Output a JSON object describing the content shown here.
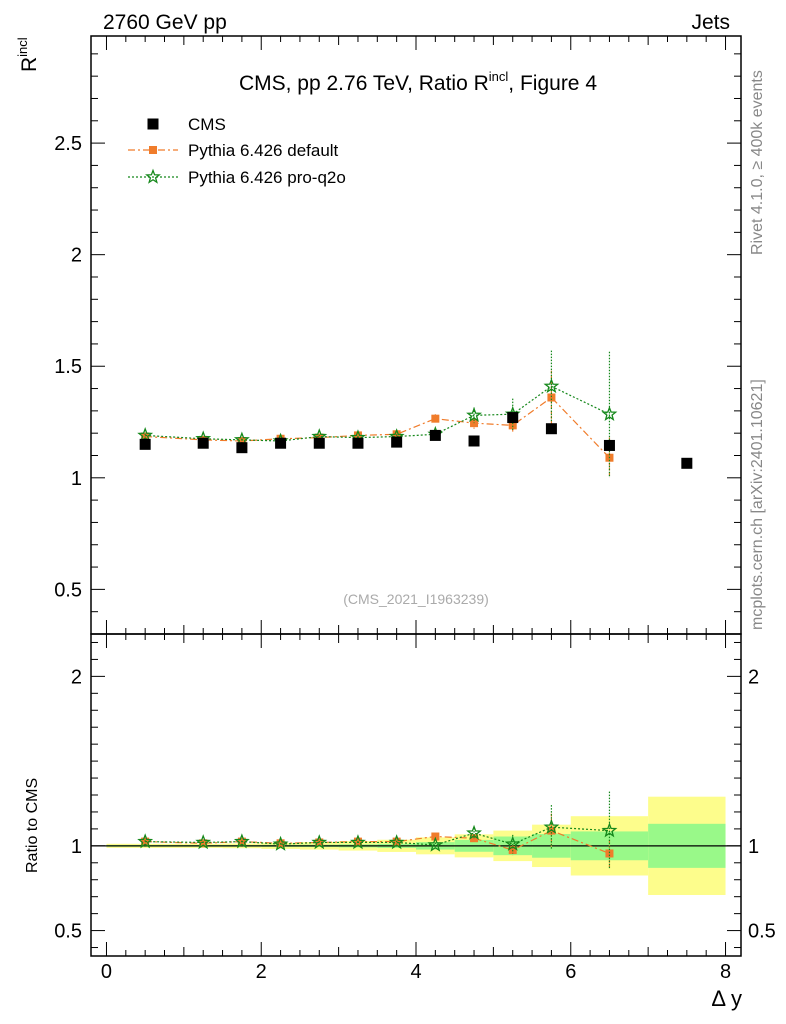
{
  "header": {
    "left": "2760 GeV pp",
    "right": "Jets"
  },
  "side_labels": {
    "rivet": "Rivet 4.1.0, ≥ 400k events",
    "mcplots": "mcplots.cern.ch [arXiv:2401.10621]"
  },
  "chart_data": [
    {
      "type": "scatter",
      "panel": "main",
      "title": "CMS, pp 2.76 TeV, Ratio R",
      "title_sup": "incl",
      "title_suffix": ", Figure 4",
      "ylabel": "R",
      "ylabel_sup": "incl",
      "xlim": [
        -0.2,
        8.2
      ],
      "ylim": [
        0.3,
        2.98
      ],
      "yticks": [
        0.5,
        1,
        1.5,
        2,
        2.5
      ],
      "ytick_labels": [
        "0.5",
        "1",
        "1.5",
        "2",
        "2.5"
      ],
      "watermark": "(CMS_2021_I1963239)",
      "legend_position": "top-left",
      "series": [
        {
          "name": "CMS",
          "marker": "square",
          "color": "#000000",
          "x": [
            0.5,
            1.25,
            1.75,
            2.25,
            2.75,
            3.25,
            3.75,
            4.25,
            4.75,
            5.25,
            5.75,
            6.5,
            7.5
          ],
          "y": [
            1.15,
            1.155,
            1.135,
            1.155,
            1.155,
            1.155,
            1.16,
            1.19,
            1.165,
            1.27,
            1.22,
            1.145,
            1.065
          ]
        },
        {
          "name": "Pythia 6.426 default",
          "marker": "filled-square",
          "line": "dash-dot",
          "color": "#f07c2b",
          "x": [
            0.5,
            1.25,
            1.75,
            2.25,
            2.75,
            3.25,
            3.75,
            4.25,
            4.75,
            5.25,
            5.75,
            6.5
          ],
          "y": [
            1.185,
            1.17,
            1.165,
            1.175,
            1.18,
            1.19,
            1.195,
            1.265,
            1.245,
            1.235,
            1.36,
            1.09
          ],
          "err": [
            0.008,
            0.006,
            0.006,
            0.006,
            0.008,
            0.008,
            0.01,
            0.02,
            0.025,
            0.03,
            0.12,
            0.09
          ]
        },
        {
          "name": "Pythia 6.426 pro-q2o",
          "marker": "open-star",
          "line": "dotted",
          "color": "#15881b",
          "x": [
            0.5,
            1.25,
            1.75,
            2.25,
            2.75,
            3.25,
            3.75,
            4.25,
            4.75,
            5.25,
            5.75,
            6.5
          ],
          "y": [
            1.19,
            1.175,
            1.17,
            1.165,
            1.185,
            1.18,
            1.185,
            1.195,
            1.28,
            1.285,
            1.41,
            1.285
          ],
          "err": [
            0.008,
            0.006,
            0.006,
            0.006,
            0.008,
            0.008,
            0.01,
            0.015,
            0.035,
            0.07,
            0.16,
            0.28
          ]
        }
      ]
    },
    {
      "type": "scatter",
      "panel": "ratio",
      "ylabel": "Ratio to CMS",
      "xlabel": "Δ y",
      "xlim": [
        -0.2,
        8.2
      ],
      "ylim": [
        0.35,
        2.25
      ],
      "yticks": [
        0.5,
        1,
        2
      ],
      "ytick_labels": [
        "0.5",
        "1",
        "2"
      ],
      "xticks": [
        0,
        2,
        4,
        6,
        8
      ],
      "xtick_labels": [
        "0",
        "2",
        "4",
        "6",
        "8"
      ],
      "uncertainty_bands": {
        "edges": [
          0,
          1,
          1.5,
          2,
          2.5,
          3,
          3.5,
          4,
          4.5,
          5,
          5.5,
          6,
          7,
          8
        ],
        "inner_color": "#99f989",
        "outer_color": "#fdfd8c",
        "stat_half_width": [
          0.005,
          0.005,
          0.005,
          0.006,
          0.007,
          0.009,
          0.012,
          0.022,
          0.035,
          0.055,
          0.07,
          0.085,
          0.13
        ],
        "total_half_width": [
          0.012,
          0.012,
          0.014,
          0.018,
          0.022,
          0.028,
          0.036,
          0.05,
          0.068,
          0.09,
          0.125,
          0.175,
          0.29
        ]
      },
      "series": [
        {
          "name": "Pythia 6.426 default",
          "color": "#f07c2b",
          "x": [
            0.5,
            1.25,
            1.75,
            2.25,
            2.75,
            3.25,
            3.75,
            4.25,
            4.75,
            5.25,
            5.75,
            6.5
          ],
          "y": [
            1.025,
            1.015,
            1.025,
            1.015,
            1.02,
            1.025,
            1.025,
            1.055,
            1.045,
            0.975,
            1.09,
            0.955
          ],
          "err": [
            0.008,
            0.006,
            0.006,
            0.006,
            0.008,
            0.008,
            0.01,
            0.02,
            0.025,
            0.03,
            0.1,
            0.08
          ]
        },
        {
          "name": "Pythia 6.426 pro-q2o",
          "color": "#15881b",
          "x": [
            0.5,
            1.25,
            1.75,
            2.25,
            2.75,
            3.25,
            3.75,
            4.25,
            4.75,
            5.25,
            5.75,
            6.5
          ],
          "y": [
            1.025,
            1.02,
            1.025,
            1.01,
            1.02,
            1.02,
            1.02,
            1.005,
            1.075,
            1.01,
            1.11,
            1.09
          ],
          "err": [
            0.008,
            0.006,
            0.006,
            0.006,
            0.008,
            0.008,
            0.01,
            0.015,
            0.03,
            0.055,
            0.13,
            0.23
          ]
        }
      ]
    }
  ]
}
